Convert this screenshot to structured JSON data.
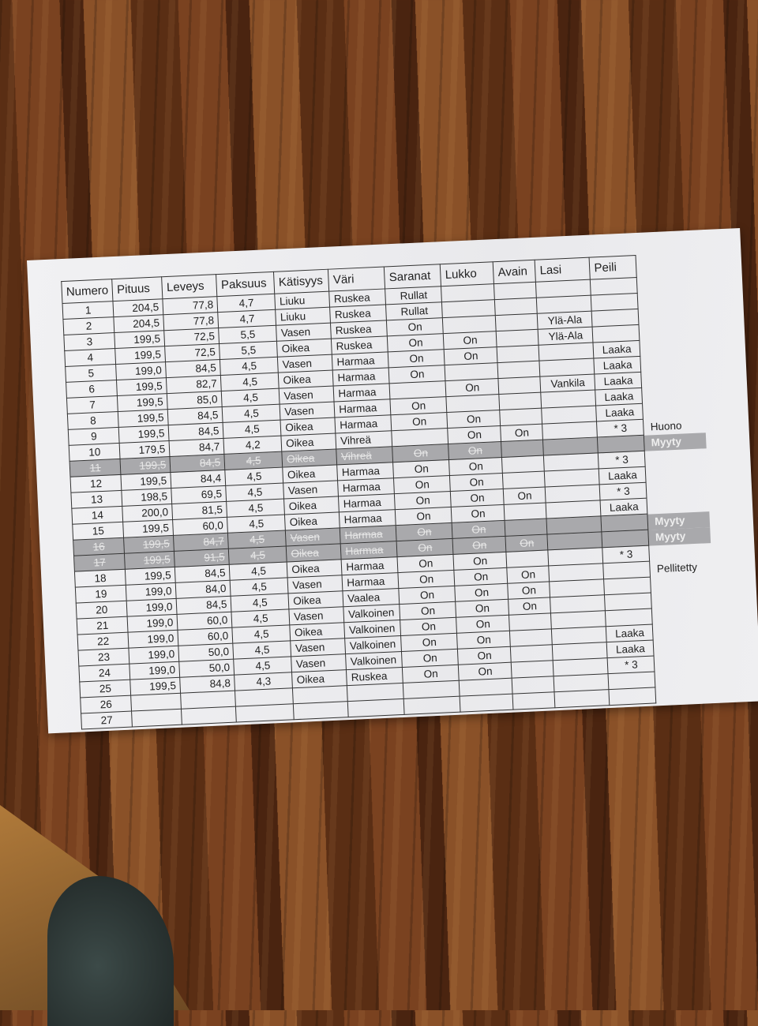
{
  "headers": [
    "Numero",
    "Pituus",
    "Leveys",
    "Paksuus",
    "Kätisyys",
    "Väri",
    "Saranat",
    "Lukko",
    "Avain",
    "Lasi",
    "Peili"
  ],
  "rows": [
    {
      "cells": [
        "1",
        "204,5",
        "77,8",
        "4,7",
        "Liuku",
        "Ruskea",
        "Rullat",
        "",
        "",
        "",
        ""
      ],
      "note": "",
      "sold": false
    },
    {
      "cells": [
        "2",
        "204,5",
        "77,8",
        "4,7",
        "Liuku",
        "Ruskea",
        "Rullat",
        "",
        "",
        "",
        ""
      ],
      "note": "",
      "sold": false
    },
    {
      "cells": [
        "3",
        "199,5",
        "72,5",
        "5,5",
        "Vasen",
        "Ruskea",
        "On",
        "",
        "",
        "Ylä-Ala",
        ""
      ],
      "note": "",
      "sold": false
    },
    {
      "cells": [
        "4",
        "199,5",
        "72,5",
        "5,5",
        "Oikea",
        "Ruskea",
        "On",
        "On",
        "",
        "Ylä-Ala",
        ""
      ],
      "note": "",
      "sold": false
    },
    {
      "cells": [
        "5",
        "199,0",
        "84,5",
        "4,5",
        "Vasen",
        "Harmaa",
        "On",
        "On",
        "",
        "",
        "Laaka"
      ],
      "note": "",
      "sold": false
    },
    {
      "cells": [
        "6",
        "199,5",
        "82,7",
        "4,5",
        "Oikea",
        "Harmaa",
        "On",
        "",
        "",
        "",
        "Laaka"
      ],
      "note": "",
      "sold": false
    },
    {
      "cells": [
        "7",
        "199,5",
        "85,0",
        "4,5",
        "Vasen",
        "Harmaa",
        "",
        "On",
        "",
        "Vankila",
        "Laaka"
      ],
      "note": "",
      "sold": false
    },
    {
      "cells": [
        "8",
        "199,5",
        "84,5",
        "4,5",
        "Vasen",
        "Harmaa",
        "On",
        "",
        "",
        "",
        "Laaka"
      ],
      "note": "",
      "sold": false
    },
    {
      "cells": [
        "9",
        "199,5",
        "84,5",
        "4,5",
        "Oikea",
        "Harmaa",
        "On",
        "On",
        "",
        "",
        "Laaka"
      ],
      "note": "",
      "sold": false
    },
    {
      "cells": [
        "10",
        "179,5",
        "84,7",
        "4,2",
        "Oikea",
        "Vihreä",
        "",
        "On",
        "On",
        "",
        "* 3"
      ],
      "note": "Huono",
      "sold": false
    },
    {
      "cells": [
        "11",
        "199,5",
        "84,5",
        "4,5",
        "Oikea",
        "Vihreä",
        "On",
        "On",
        "",
        "",
        ""
      ],
      "note": "Myyty",
      "sold": true
    },
    {
      "cells": [
        "12",
        "199,5",
        "84,4",
        "4,5",
        "Oikea",
        "Harmaa",
        "On",
        "On",
        "",
        "",
        "* 3"
      ],
      "note": "",
      "sold": false
    },
    {
      "cells": [
        "13",
        "198,5",
        "69,5",
        "4,5",
        "Vasen",
        "Harmaa",
        "On",
        "On",
        "",
        "",
        "Laaka"
      ],
      "note": "",
      "sold": false
    },
    {
      "cells": [
        "14",
        "200,0",
        "81,5",
        "4,5",
        "Oikea",
        "Harmaa",
        "On",
        "On",
        "On",
        "",
        "* 3"
      ],
      "note": "",
      "sold": false
    },
    {
      "cells": [
        "15",
        "199,5",
        "60,0",
        "4,5",
        "Oikea",
        "Harmaa",
        "On",
        "On",
        "",
        "",
        "Laaka"
      ],
      "note": "",
      "sold": false
    },
    {
      "cells": [
        "16",
        "199,5",
        "84,7",
        "4,5",
        "Vasen",
        "Harmaa",
        "On",
        "On",
        "",
        "",
        ""
      ],
      "note": "Myyty",
      "sold": true
    },
    {
      "cells": [
        "17",
        "199,5",
        "91,5",
        "4,5",
        "Oikea",
        "Harmaa",
        "On",
        "On",
        "On",
        "",
        ""
      ],
      "note": "Myyty",
      "sold": true
    },
    {
      "cells": [
        "18",
        "199,5",
        "84,5",
        "4,5",
        "Oikea",
        "Harmaa",
        "On",
        "On",
        "",
        "",
        "* 3"
      ],
      "note": "",
      "sold": false
    },
    {
      "cells": [
        "19",
        "199,0",
        "84,0",
        "4,5",
        "Vasen",
        "Harmaa",
        "On",
        "On",
        "On",
        "",
        ""
      ],
      "note": "Pellitetty",
      "sold": false
    },
    {
      "cells": [
        "20",
        "199,0",
        "84,5",
        "4,5",
        "Oikea",
        "Vaalea",
        "On",
        "On",
        "On",
        "",
        ""
      ],
      "note": "",
      "sold": false
    },
    {
      "cells": [
        "21",
        "199,0",
        "60,0",
        "4,5",
        "Vasen",
        "Valkoinen",
        "On",
        "On",
        "On",
        "",
        ""
      ],
      "note": "",
      "sold": false
    },
    {
      "cells": [
        "22",
        "199,0",
        "60,0",
        "4,5",
        "Oikea",
        "Valkoinen",
        "On",
        "On",
        "",
        "",
        ""
      ],
      "note": "",
      "sold": false
    },
    {
      "cells": [
        "23",
        "199,0",
        "50,0",
        "4,5",
        "Vasen",
        "Valkoinen",
        "On",
        "On",
        "",
        "",
        "Laaka"
      ],
      "note": "",
      "sold": false
    },
    {
      "cells": [
        "24",
        "199,0",
        "50,0",
        "4,5",
        "Vasen",
        "Valkoinen",
        "On",
        "On",
        "",
        "",
        "Laaka"
      ],
      "note": "",
      "sold": false
    },
    {
      "cells": [
        "25",
        "199,5",
        "84,8",
        "4,3",
        "Oikea",
        "Ruskea",
        "On",
        "On",
        "",
        "",
        "* 3"
      ],
      "note": "",
      "sold": false
    },
    {
      "cells": [
        "26",
        "",
        "",
        "",
        "",
        "",
        "",
        "",
        "",
        "",
        ""
      ],
      "note": "",
      "sold": false
    },
    {
      "cells": [
        "27",
        "",
        "",
        "",
        "",
        "",
        "",
        "",
        "",
        "",
        ""
      ],
      "note": "",
      "sold": false
    }
  ],
  "colors": {
    "sold_row": "#a9a9ac",
    "paper": "#eeeef0",
    "wood": "#6b3a1c"
  }
}
